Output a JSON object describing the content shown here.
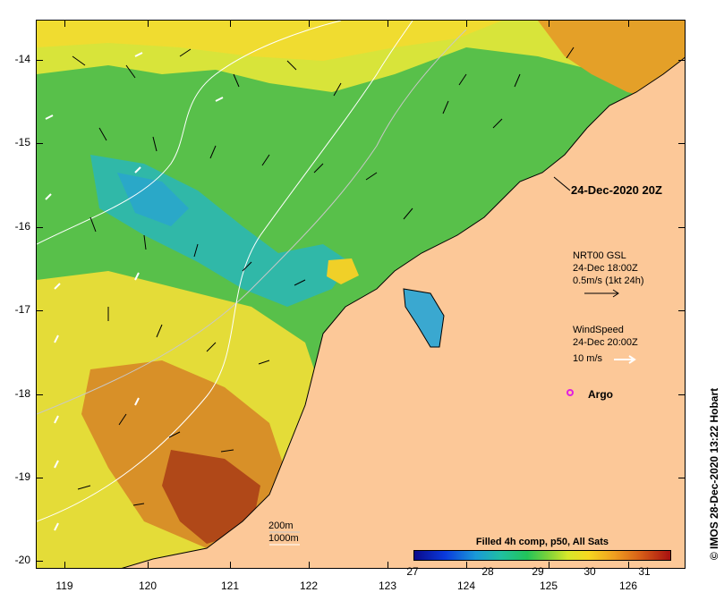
{
  "map": {
    "timestamp": "24-Dec-2020 20Z",
    "y_labels": [
      "-14",
      "-15",
      "-16",
      "-17",
      "-18",
      "-19",
      "-20"
    ],
    "x_labels": [
      "119",
      "120",
      "121",
      "122",
      "123",
      "124",
      "125",
      "126"
    ],
    "current_legend": {
      "line1": "NRT00 GSL",
      "line2": "24-Dec 18:00Z",
      "line3": "0.5m/s (1kt 24h)"
    },
    "wind_legend": {
      "line1": "WindSpeed",
      "line2": "24-Dec 20:00Z",
      "line3": "10 m/s"
    },
    "argo_label": "Argo",
    "depth_labels": {
      "d200": "200m",
      "d1000": "1000m"
    },
    "colorbar": {
      "title": "Filled 4h comp, p50, All Sats",
      "ticks": [
        "27",
        "28",
        "29",
        "30",
        "31"
      ]
    },
    "credit": "© IMOS 28-Dec-2020 13:22 Hobart",
    "colors": {
      "land": "#fcc898",
      "argo": "#e020e0",
      "warm": "#c05018",
      "cool": "#2aa8c8"
    }
  }
}
